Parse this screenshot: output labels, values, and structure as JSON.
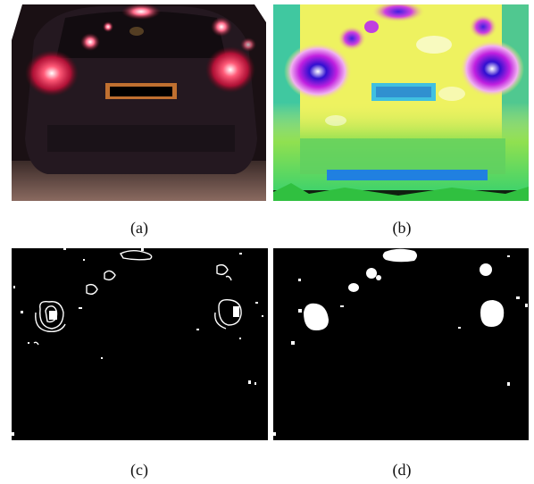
{
  "panels": {
    "a": {
      "caption": "(a)"
    },
    "b": {
      "caption": "(b)"
    },
    "c": {
      "caption": "(c)"
    },
    "d": {
      "caption": "(d)"
    }
  },
  "colors": {
    "panel_c_background": "#000000",
    "panel_d_background": "#000000",
    "mask_foreground": "#ffffff"
  }
}
